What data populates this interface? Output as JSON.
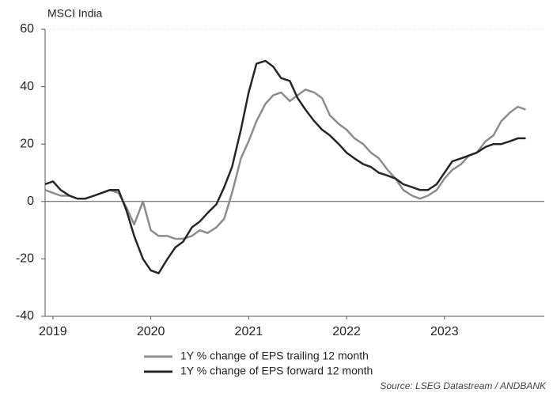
{
  "chart_data": {
    "type": "line",
    "subtitle": "MSCI India",
    "source": "Source: LSEG Datastream / ANDBANK",
    "x": [
      2019.42,
      2019.5,
      2019.58,
      2019.67,
      2019.75,
      2019.83,
      2019.92,
      2020.0,
      2020.08,
      2020.17,
      2020.25,
      2020.33,
      2020.42,
      2020.5,
      2020.58,
      2020.67,
      2020.75,
      2020.83,
      2020.92,
      2021.0,
      2021.08,
      2021.17,
      2021.25,
      2021.33,
      2021.42,
      2021.5,
      2021.58,
      2021.67,
      2021.75,
      2021.83,
      2021.92,
      2022.0,
      2022.08,
      2022.17,
      2022.25,
      2022.33,
      2022.42,
      2022.5,
      2022.58,
      2022.67,
      2022.75,
      2022.83,
      2022.92,
      2023.0,
      2023.08,
      2023.17,
      2023.25,
      2023.33,
      2023.42,
      2023.5,
      2023.58,
      2023.67,
      2023.75,
      2023.83,
      2023.92,
      2024.0,
      2024.08,
      2024.17,
      2024.25,
      2024.33
    ],
    "series": [
      {
        "name": "1Y % change of EPS trailing 12 month",
        "color": "#8c8c8c",
        "values": [
          4,
          3,
          2,
          2,
          1,
          1,
          2,
          3,
          4,
          3,
          -2,
          -8,
          0,
          -10,
          -12,
          -12,
          -13,
          -13,
          -12,
          -10,
          -11,
          -9,
          -6,
          3,
          15,
          21,
          28,
          34,
          37,
          38,
          35,
          37,
          39,
          38,
          36,
          30,
          27,
          25,
          22,
          20,
          17,
          15,
          11,
          8,
          4,
          2,
          1,
          2,
          4,
          8,
          11,
          13,
          16,
          17,
          21,
          23,
          28,
          31,
          33,
          32
        ]
      },
      {
        "name": "1Y % change of EPS forward 12 month",
        "color": "#262626",
        "values": [
          6,
          7,
          4,
          2,
          1,
          1,
          2,
          3,
          4,
          4,
          -3,
          -12,
          -20,
          -24,
          -25,
          -20,
          -16,
          -14,
          -9,
          -7,
          -4,
          -1,
          5,
          12,
          25,
          38,
          48,
          49,
          47,
          43,
          42,
          36,
          32,
          28,
          25,
          23,
          20,
          17,
          15,
          13,
          12,
          10,
          9,
          8,
          6,
          5,
          4,
          4,
          6,
          10,
          14,
          15,
          16,
          17,
          19,
          20,
          20,
          21,
          22,
          22
        ]
      }
    ],
    "xlim": [
      2019.42,
      2024.52
    ],
    "xticks": [
      {
        "value": 2019.5,
        "label": "2019"
      },
      {
        "value": 2020.5,
        "label": "2020"
      },
      {
        "value": 2021.5,
        "label": "2021"
      },
      {
        "value": 2022.5,
        "label": "2022"
      },
      {
        "value": 2023.5,
        "label": "2023"
      }
    ],
    "ylim": [
      -40,
      60
    ],
    "yticks": [
      -40,
      -20,
      0,
      20,
      40,
      60
    ],
    "grid": false,
    "zero_line": true,
    "legend": "bottom"
  }
}
